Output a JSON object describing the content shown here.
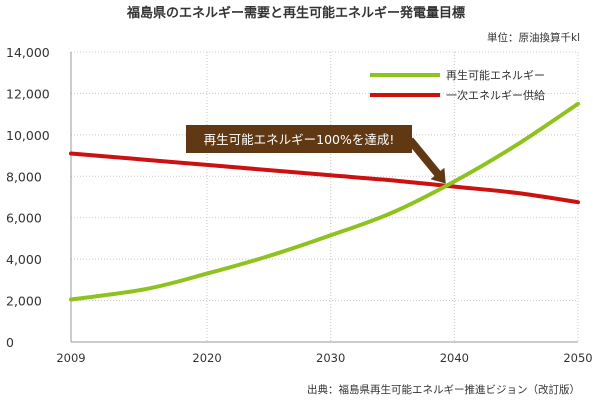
{
  "chart_data": {
    "type": "line",
    "title": "福島県のエネルギー需要と再生可能エネルギー発電量目標",
    "unit_label": "単位：原油換算千kl",
    "source": "出典：福島県再生可能エネルギー推進ビジョン（改訂版）",
    "xlim": [
      2009,
      2050
    ],
    "ylim": [
      0,
      14000
    ],
    "x_ticks": [
      {
        "value": 2009,
        "label": "2009"
      },
      {
        "value": 2020,
        "label": "2020"
      },
      {
        "value": 2030,
        "label": "2030"
      },
      {
        "value": 2040,
        "label": "2040"
      },
      {
        "value": 2050,
        "label": "2050"
      }
    ],
    "y_ticks": [
      {
        "value": 0,
        "label": "0"
      },
      {
        "value": 2000,
        "label": "2,000"
      },
      {
        "value": 4000,
        "label": "4,000"
      },
      {
        "value": 6000,
        "label": "6,000"
      },
      {
        "value": 8000,
        "label": "8,000"
      },
      {
        "value": 10000,
        "label": "10,000"
      },
      {
        "value": 12000,
        "label": "12,000"
      },
      {
        "value": 14000,
        "label": "14,000"
      }
    ],
    "legend_position": "top-right",
    "grid": {
      "x": true,
      "y": true
    },
    "series": [
      {
        "name": "再生可能エネルギー",
        "color": "#8dc21f",
        "x": [
          2009,
          2015,
          2020,
          2025,
          2030,
          2035,
          2040,
          2045,
          2050
        ],
        "y": [
          2050,
          2550,
          3300,
          4150,
          5150,
          6250,
          7750,
          9500,
          11500
        ]
      },
      {
        "name": "一次エネルギー供給",
        "color": "#cc1111",
        "x": [
          2009,
          2015,
          2020,
          2025,
          2030,
          2035,
          2040,
          2045,
          2050
        ],
        "y": [
          9100,
          8800,
          8550,
          8300,
          8050,
          7800,
          7500,
          7200,
          6750
        ]
      }
    ],
    "annotation": {
      "text": "再生可能エネルギー100%を達成!",
      "x": 2039.3,
      "y": 7650,
      "fill": "#603813"
    }
  }
}
